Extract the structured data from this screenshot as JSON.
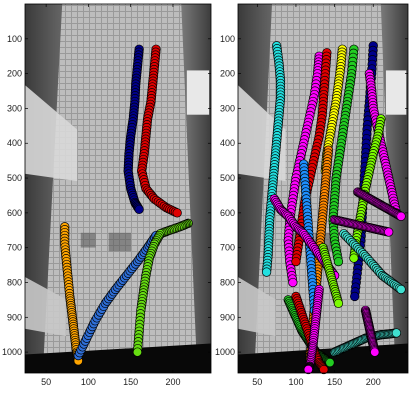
{
  "chart_data": [
    {
      "type": "scatter",
      "title": "",
      "xlabel": "",
      "ylabel": "",
      "xlim": [
        25,
        245
      ],
      "ylim": [
        1060,
        0
      ],
      "x_ticks": [
        50,
        100,
        150,
        200
      ],
      "y_ticks": [
        100,
        200,
        300,
        400,
        500,
        600,
        700,
        800,
        900,
        1000
      ],
      "background": "grayscale overhead camera frame",
      "marker": "circle, black edge",
      "series": [
        {
          "color": "#00008b",
          "x": [
            160,
            158,
            156,
            155,
            153,
            150,
            148,
            147,
            150,
            155,
            160
          ],
          "y": [
            130,
            180,
            230,
            280,
            330,
            380,
            430,
            480,
            530,
            570,
            590
          ]
        },
        {
          "color": "#e00000",
          "x": [
            180,
            178,
            176,
            174,
            170,
            168,
            166,
            163,
            168,
            178,
            192,
            205
          ],
          "y": [
            130,
            180,
            230,
            280,
            330,
            380,
            430,
            480,
            530,
            560,
            585,
            600
          ]
        },
        {
          "color": "#ffa500",
          "x": [
            72,
            72,
            74,
            76,
            78,
            80,
            82,
            84,
            86,
            88
          ],
          "y": [
            640,
            690,
            740,
            790,
            840,
            880,
            920,
            960,
            1000,
            1025
          ]
        },
        {
          "color": "#2f6fd8",
          "x": [
            88,
            98,
            108,
            120,
            132,
            145,
            158,
            170,
            180
          ],
          "y": [
            1010,
            960,
            910,
            860,
            820,
            780,
            740,
            700,
            665
          ]
        },
        {
          "color": "#66dd11",
          "x": [
            218,
            208,
            196,
            185,
            178,
            172,
            168,
            165,
            162,
            160,
            158
          ],
          "y": [
            630,
            640,
            650,
            660,
            690,
            730,
            780,
            830,
            880,
            940,
            1000
          ]
        }
      ]
    },
    {
      "type": "scatter",
      "title": "",
      "xlabel": "",
      "ylabel": "",
      "xlim": [
        25,
        245
      ],
      "ylim": [
        1060,
        0
      ],
      "x_ticks": [
        50,
        100,
        150,
        200
      ],
      "y_ticks": [
        100,
        200,
        300,
        400,
        500,
        600,
        700,
        800,
        900,
        1000
      ],
      "background": "grayscale overhead camera frame",
      "marker": "circle, black edge",
      "series": [
        {
          "color": "#22e0e0",
          "x": [
            75,
            78,
            80,
            80,
            78,
            76,
            74,
            72,
            70,
            68,
            66,
            65,
            64,
            62
          ],
          "y": [
            120,
            170,
            220,
            270,
            320,
            370,
            420,
            470,
            520,
            570,
            620,
            670,
            720,
            770
          ]
        },
        {
          "color": "#ff00ff",
          "x": [
            130,
            128,
            124,
            118,
            112,
            106,
            100,
            96,
            92,
            90,
            92,
            96
          ],
          "y": [
            150,
            200,
            260,
            320,
            380,
            440,
            500,
            560,
            620,
            680,
            740,
            800
          ]
        },
        {
          "color": "#e00000",
          "x": [
            140,
            138,
            136,
            134,
            130,
            124,
            118,
            112,
            108,
            104,
            100
          ],
          "y": [
            140,
            200,
            260,
            320,
            380,
            440,
            500,
            560,
            620,
            680,
            740
          ]
        },
        {
          "color": "#ffff00",
          "x": [
            160,
            158,
            155,
            152,
            148,
            144,
            140,
            138
          ],
          "y": [
            130,
            180,
            230,
            280,
            330,
            380,
            430,
            480
          ]
        },
        {
          "color": "#22cc22",
          "x": [
            175,
            172,
            168,
            164,
            160,
            156,
            152,
            150,
            148,
            150,
            155
          ],
          "y": [
            130,
            200,
            260,
            320,
            380,
            440,
            500,
            560,
            620,
            680,
            740
          ]
        },
        {
          "color": "#ff8800",
          "x": [
            142,
            140,
            138,
            136,
            134,
            132,
            130,
            128,
            126,
            124,
            122,
            120,
            118
          ],
          "y": [
            420,
            470,
            520,
            570,
            620,
            670,
            720,
            770,
            820,
            870,
            920,
            970,
            1020
          ]
        },
        {
          "color": "#00008b",
          "x": [
            200,
            198,
            195,
            192,
            190,
            188,
            186,
            184,
            180,
            176
          ],
          "y": [
            120,
            200,
            280,
            360,
            440,
            520,
            600,
            680,
            760,
            840
          ]
        },
        {
          "color": "#ff00ff",
          "x": [
            195,
            198,
            200,
            205,
            210,
            215,
            220,
            225,
            230
          ],
          "y": [
            200,
            250,
            300,
            350,
            400,
            450,
            500,
            550,
            600
          ]
        },
        {
          "color": "#7cfc00",
          "x": [
            210,
            206,
            200,
            195,
            190,
            186,
            182,
            178,
            175
          ],
          "y": [
            330,
            380,
            430,
            480,
            530,
            580,
            630,
            680,
            730
          ]
        },
        {
          "color": "#1e90ff",
          "x": [
            110,
            112,
            114,
            116,
            118,
            120,
            122,
            124
          ],
          "y": [
            460,
            520,
            580,
            640,
            700,
            760,
            820,
            880
          ]
        },
        {
          "color": "#ff00ff",
          "x": [
            72,
            80,
            90,
            100,
            110,
            120,
            130,
            140,
            150
          ],
          "y": [
            560,
            590,
            610,
            640,
            660,
            690,
            720,
            750,
            780
          ]
        },
        {
          "color": "#40e0d0",
          "x": [
            162,
            175,
            188,
            200,
            212,
            224,
            236
          ],
          "y": [
            660,
            690,
            720,
            750,
            780,
            800,
            820
          ]
        },
        {
          "color": "#ff00ff",
          "x": [
            150,
            160,
            170,
            180,
            190,
            200,
            210,
            220
          ],
          "y": [
            620,
            625,
            630,
            635,
            640,
            645,
            650,
            655
          ]
        },
        {
          "color": "#22cc22",
          "x": [
            90,
            96,
            102,
            108,
            114,
            120,
            126,
            132,
            138,
            144
          ],
          "y": [
            850,
            880,
            910,
            940,
            960,
            980,
            1000,
            1010,
            1020,
            1030
          ]
        },
        {
          "color": "#e00000",
          "x": [
            100,
            106,
            112,
            118,
            124,
            130,
            136
          ],
          "y": [
            840,
            880,
            920,
            960,
            1000,
            1030,
            1050
          ]
        },
        {
          "color": "#ff00ff",
          "x": [
            130,
            128,
            126,
            124,
            122,
            120,
            118,
            116
          ],
          "y": [
            820,
            860,
            900,
            940,
            980,
            1010,
            1040,
            1050
          ]
        },
        {
          "color": "#40e0d0",
          "x": [
            150,
            160,
            170,
            180,
            190,
            200,
            210,
            220,
            230
          ],
          "y": [
            1000,
            990,
            980,
            970,
            960,
            955,
            950,
            948,
            945
          ]
        },
        {
          "color": "#ff00ff",
          "x": [
            190,
            192,
            194,
            196,
            198,
            200,
            202
          ],
          "y": [
            880,
            900,
            920,
            940,
            960,
            980,
            1000
          ]
        },
        {
          "color": "#7cfc00",
          "x": [
            135,
            140,
            145,
            150,
            155
          ],
          "y": [
            700,
            740,
            780,
            820,
            860
          ]
        },
        {
          "color": "#ff00ff",
          "x": [
            180,
            188,
            196,
            204,
            212,
            220,
            228,
            236
          ],
          "y": [
            540,
            550,
            560,
            570,
            580,
            590,
            600,
            610
          ]
        }
      ]
    }
  ]
}
